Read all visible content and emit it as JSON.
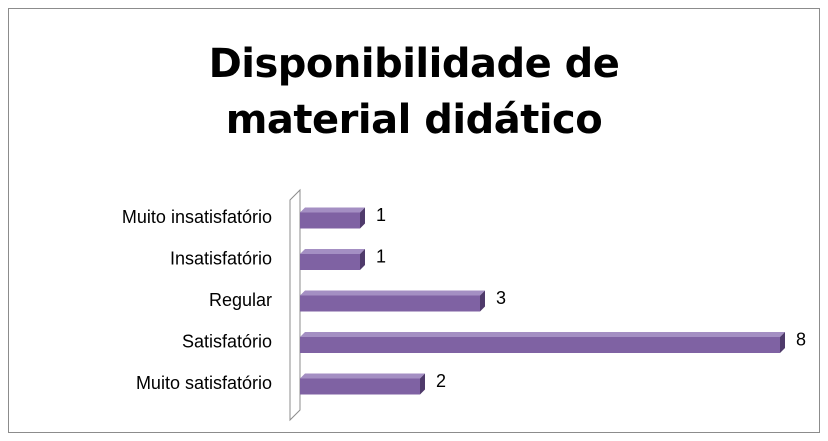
{
  "chart_data": {
    "type": "bar",
    "orientation": "horizontal",
    "title": "Disponibilidade de material didático",
    "categories": [
      "Muito insatisfatório",
      "Insatisfatório",
      "Regular",
      "Satisfatório",
      "Muito satisfatório"
    ],
    "values": [
      1,
      1,
      3,
      8,
      2
    ],
    "color": "#7f62a3",
    "xlim": [
      0,
      8
    ]
  }
}
